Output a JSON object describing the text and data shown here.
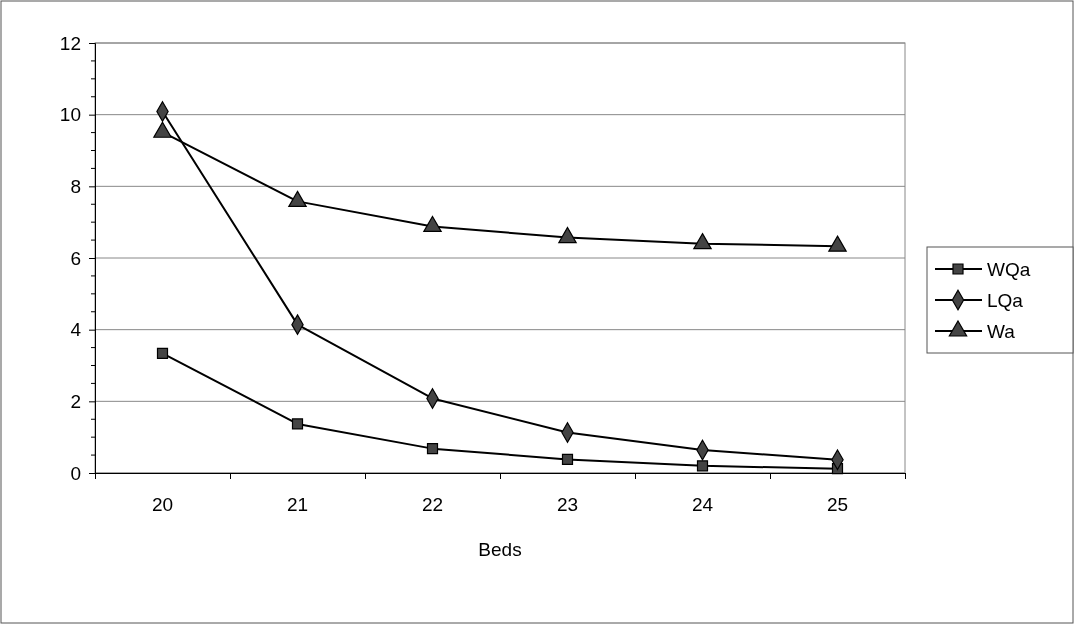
{
  "chart_data": {
    "type": "line",
    "xlabel": "Beds",
    "categories": [
      "20",
      "21",
      "22",
      "23",
      "24",
      "25"
    ],
    "series": [
      {
        "name": "WQa",
        "color": "#000000",
        "marker": "square",
        "values": [
          3.34,
          1.37,
          0.68,
          0.38,
          0.2,
          0.12
        ]
      },
      {
        "name": "LQa",
        "color": "#000000",
        "marker": "diamond",
        "values": [
          10.09,
          4.14,
          2.08,
          1.13,
          0.64,
          0.37
        ]
      },
      {
        "name": "Wa",
        "color": "#000000",
        "marker": "triangle",
        "values": [
          9.51,
          7.58,
          6.88,
          6.57,
          6.4,
          6.33
        ]
      }
    ],
    "ylim": [
      0,
      12
    ],
    "yticks": [
      0,
      2,
      4,
      6,
      8,
      10,
      12
    ],
    "grid": "y",
    "legend": "right",
    "line_style": "solid"
  }
}
